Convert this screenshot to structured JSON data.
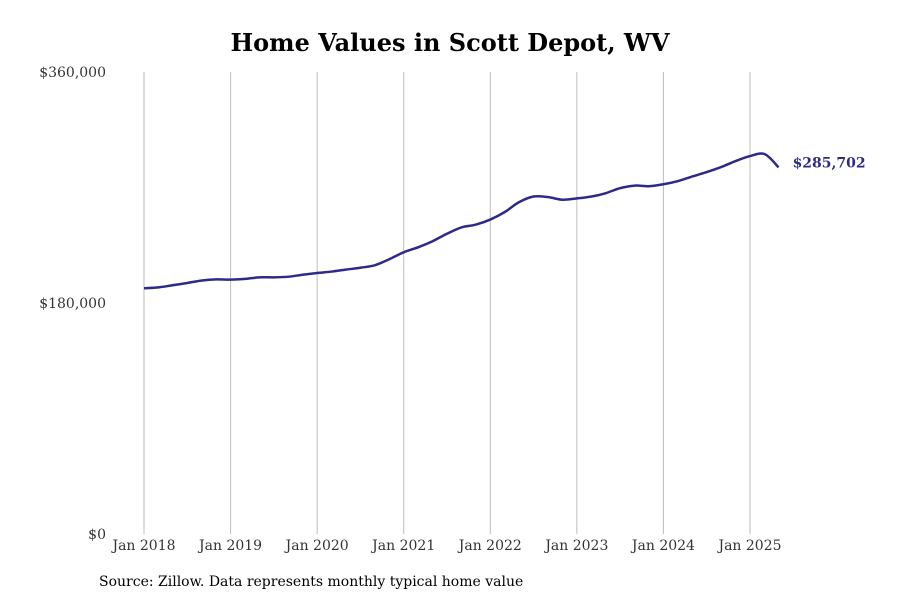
{
  "chart_data": {
    "type": "line",
    "title": "Home Values in Scott Depot, WV",
    "xlabel": "",
    "ylabel": "",
    "ylim": [
      0,
      360000
    ],
    "y_ticks": [
      {
        "value": 0,
        "label": "$0"
      },
      {
        "value": 180000,
        "label": "$180,000"
      },
      {
        "value": 360000,
        "label": "$360,000"
      }
    ],
    "x_ticks": [
      {
        "value": 2018.0,
        "label": "Jan 2018"
      },
      {
        "value": 2019.0,
        "label": "Jan 2019"
      },
      {
        "value": 2020.0,
        "label": "Jan 2020"
      },
      {
        "value": 2021.0,
        "label": "Jan 2021"
      },
      {
        "value": 2022.0,
        "label": "Jan 2022"
      },
      {
        "value": 2023.0,
        "label": "Jan 2023"
      },
      {
        "value": 2024.0,
        "label": "Jan 2024"
      },
      {
        "value": 2025.0,
        "label": "Jan 2025"
      }
    ],
    "grid": "vertical",
    "series": [
      {
        "color": "#2e2a8a",
        "end_label": "$285,702",
        "points": [
          [
            2018.0,
            191500
          ],
          [
            2018.17,
            192200
          ],
          [
            2018.33,
            193800
          ],
          [
            2018.5,
            195600
          ],
          [
            2018.67,
            197500
          ],
          [
            2018.83,
            198400
          ],
          [
            2019.0,
            198200
          ],
          [
            2019.17,
            198800
          ],
          [
            2019.33,
            200000
          ],
          [
            2019.5,
            200000
          ],
          [
            2019.67,
            200500
          ],
          [
            2019.83,
            202000
          ],
          [
            2020.0,
            203400
          ],
          [
            2020.17,
            204500
          ],
          [
            2020.33,
            206000
          ],
          [
            2020.5,
            207500
          ],
          [
            2020.67,
            209500
          ],
          [
            2020.83,
            214000
          ],
          [
            2021.0,
            219500
          ],
          [
            2021.17,
            223500
          ],
          [
            2021.33,
            228000
          ],
          [
            2021.5,
            234000
          ],
          [
            2021.67,
            239000
          ],
          [
            2021.83,
            241000
          ],
          [
            2022.0,
            245000
          ],
          [
            2022.17,
            251000
          ],
          [
            2022.33,
            258500
          ],
          [
            2022.5,
            263000
          ],
          [
            2022.67,
            262500
          ],
          [
            2022.83,
            260500
          ],
          [
            2023.0,
            261500
          ],
          [
            2023.17,
            263000
          ],
          [
            2023.33,
            265500
          ],
          [
            2023.5,
            269500
          ],
          [
            2023.67,
            271500
          ],
          [
            2023.83,
            271000
          ],
          [
            2024.0,
            272500
          ],
          [
            2024.17,
            275000
          ],
          [
            2024.33,
            278500
          ],
          [
            2024.5,
            282000
          ],
          [
            2024.67,
            286000
          ],
          [
            2024.83,
            290500
          ],
          [
            2025.0,
            294500
          ],
          [
            2025.17,
            296000
          ],
          [
            2025.33,
            285702
          ]
        ]
      }
    ]
  },
  "source_note": "Source: Zillow. Data represents monthly typical home value"
}
